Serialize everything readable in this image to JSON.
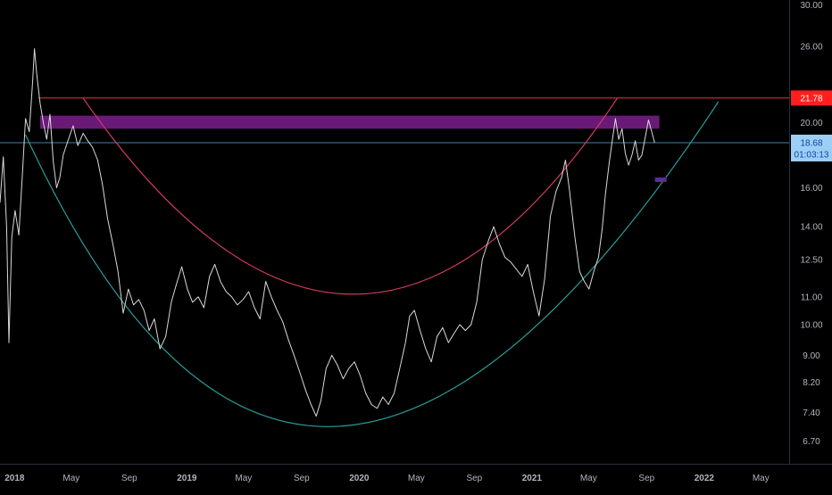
{
  "chart_data": {
    "type": "line",
    "title": "",
    "xlabel": "",
    "ylabel": "",
    "y_scale": "log",
    "ylim": [
      6.2,
      30.5
    ],
    "xlim": [
      "2017-12-01",
      "2022-06-30"
    ],
    "grid": false,
    "y_ticks": [
      "30.00",
      "26.00",
      "20.00",
      "16.00",
      "14.00",
      "12.50",
      "11.00",
      "10.00",
      "9.00",
      "8.20",
      "7.40",
      "6.70"
    ],
    "x_ticks": [
      {
        "label": "2018",
        "date": "2018-01-01"
      },
      {
        "label": "May",
        "date": "2018-05-01"
      },
      {
        "label": "Sep",
        "date": "2018-09-01"
      },
      {
        "label": "2019",
        "date": "2019-01-01"
      },
      {
        "label": "May",
        "date": "2019-05-01"
      },
      {
        "label": "Sep",
        "date": "2019-09-01"
      },
      {
        "label": "2020",
        "date": "2020-01-01"
      },
      {
        "label": "May",
        "date": "2020-05-01"
      },
      {
        "label": "Sep",
        "date": "2020-09-01"
      },
      {
        "label": "2021",
        "date": "2021-01-01"
      },
      {
        "label": "May",
        "date": "2021-05-01"
      },
      {
        "label": "Sep",
        "date": "2021-09-01"
      },
      {
        "label": "2022",
        "date": "2022-01-01"
      },
      {
        "label": "May",
        "date": "2022-05-01"
      }
    ],
    "series": [
      {
        "color": "#d9d9d9",
        "points": [
          [
            "2017-12-01",
            15.2
          ],
          [
            "2017-12-08",
            17.8
          ],
          [
            "2017-12-15",
            14.0
          ],
          [
            "2017-12-20",
            9.4
          ],
          [
            "2017-12-26",
            13.5
          ],
          [
            "2018-01-02",
            14.8
          ],
          [
            "2018-01-10",
            13.6
          ],
          [
            "2018-01-17",
            16.5
          ],
          [
            "2018-01-24",
            20.3
          ],
          [
            "2018-02-01",
            19.4
          ],
          [
            "2018-02-08",
            23.0
          ],
          [
            "2018-02-12",
            25.8
          ],
          [
            "2018-02-17",
            23.6
          ],
          [
            "2018-02-24",
            21.4
          ],
          [
            "2018-03-03",
            20.0
          ],
          [
            "2018-03-10",
            18.9
          ],
          [
            "2018-03-17",
            20.6
          ],
          [
            "2018-03-24",
            17.5
          ],
          [
            "2018-03-31",
            16.0
          ],
          [
            "2018-04-07",
            16.6
          ],
          [
            "2018-04-14",
            17.9
          ],
          [
            "2018-04-24",
            18.8
          ],
          [
            "2018-05-05",
            19.8
          ],
          [
            "2018-05-15",
            18.5
          ],
          [
            "2018-05-26",
            19.3
          ],
          [
            "2018-06-05",
            18.8
          ],
          [
            "2018-06-15",
            18.4
          ],
          [
            "2018-06-26",
            17.6
          ],
          [
            "2018-07-06",
            16.2
          ],
          [
            "2018-07-17",
            14.4
          ],
          [
            "2018-07-28",
            13.2
          ],
          [
            "2018-08-08",
            12.0
          ],
          [
            "2018-08-19",
            10.4
          ],
          [
            "2018-08-30",
            11.3
          ],
          [
            "2018-09-10",
            10.7
          ],
          [
            "2018-09-21",
            10.9
          ],
          [
            "2018-10-02",
            10.5
          ],
          [
            "2018-10-13",
            9.8
          ],
          [
            "2018-10-24",
            10.2
          ],
          [
            "2018-11-05",
            9.2
          ],
          [
            "2018-11-17",
            9.6
          ],
          [
            "2018-11-29",
            10.8
          ],
          [
            "2018-12-10",
            11.5
          ],
          [
            "2018-12-21",
            12.2
          ],
          [
            "2019-01-02",
            11.3
          ],
          [
            "2019-01-13",
            10.8
          ],
          [
            "2019-01-25",
            11.0
          ],
          [
            "2019-02-06",
            10.6
          ],
          [
            "2019-02-18",
            11.8
          ],
          [
            "2019-03-01",
            12.3
          ],
          [
            "2019-03-13",
            11.6
          ],
          [
            "2019-03-25",
            11.2
          ],
          [
            "2019-04-06",
            11.0
          ],
          [
            "2019-04-18",
            10.7
          ],
          [
            "2019-04-30",
            10.9
          ],
          [
            "2019-05-12",
            11.2
          ],
          [
            "2019-05-24",
            10.6
          ],
          [
            "2019-06-05",
            10.2
          ],
          [
            "2019-06-17",
            11.6
          ],
          [
            "2019-06-29",
            11.0
          ],
          [
            "2019-07-11",
            10.5
          ],
          [
            "2019-07-23",
            10.1
          ],
          [
            "2019-08-04",
            9.5
          ],
          [
            "2019-08-16",
            9.0
          ],
          [
            "2019-08-28",
            8.5
          ],
          [
            "2019-09-09",
            8.0
          ],
          [
            "2019-09-21",
            7.6
          ],
          [
            "2019-10-02",
            7.3
          ],
          [
            "2019-10-12",
            7.7
          ],
          [
            "2019-10-23",
            8.6
          ],
          [
            "2019-11-04",
            9.0
          ],
          [
            "2019-11-16",
            8.7
          ],
          [
            "2019-11-28",
            8.3
          ],
          [
            "2019-12-10",
            8.6
          ],
          [
            "2019-12-22",
            8.8
          ],
          [
            "2020-01-03",
            8.4
          ],
          [
            "2020-01-15",
            7.9
          ],
          [
            "2020-01-27",
            7.6
          ],
          [
            "2020-02-08",
            7.5
          ],
          [
            "2020-02-20",
            7.8
          ],
          [
            "2020-03-03",
            7.6
          ],
          [
            "2020-03-15",
            7.9
          ],
          [
            "2020-03-27",
            8.6
          ],
          [
            "2020-04-08",
            9.4
          ],
          [
            "2020-04-17",
            10.3
          ],
          [
            "2020-04-27",
            10.5
          ],
          [
            "2020-05-09",
            9.8
          ],
          [
            "2020-05-21",
            9.2
          ],
          [
            "2020-06-02",
            8.8
          ],
          [
            "2020-06-14",
            9.6
          ],
          [
            "2020-06-26",
            9.9
          ],
          [
            "2020-07-08",
            9.4
          ],
          [
            "2020-07-20",
            9.7
          ],
          [
            "2020-08-01",
            10.0
          ],
          [
            "2020-08-13",
            9.8
          ],
          [
            "2020-08-25",
            10.0
          ],
          [
            "2020-09-06",
            10.8
          ],
          [
            "2020-09-18",
            12.5
          ],
          [
            "2020-09-30",
            13.3
          ],
          [
            "2020-10-12",
            14.0
          ],
          [
            "2020-10-24",
            13.2
          ],
          [
            "2020-11-05",
            12.6
          ],
          [
            "2020-11-17",
            12.4
          ],
          [
            "2020-11-29",
            12.1
          ],
          [
            "2020-12-11",
            11.8
          ],
          [
            "2020-12-23",
            12.3
          ],
          [
            "2021-01-04",
            11.2
          ],
          [
            "2021-01-16",
            10.3
          ],
          [
            "2021-01-28",
            11.7
          ],
          [
            "2021-02-09",
            14.5
          ],
          [
            "2021-02-21",
            15.8
          ],
          [
            "2021-03-05",
            16.6
          ],
          [
            "2021-03-13",
            17.6
          ],
          [
            "2021-03-21",
            16.0
          ],
          [
            "2021-04-02",
            13.5
          ],
          [
            "2021-04-12",
            12.0
          ],
          [
            "2021-04-22",
            11.6
          ],
          [
            "2021-05-02",
            11.3
          ],
          [
            "2021-05-12",
            12.0
          ],
          [
            "2021-05-22",
            12.6
          ],
          [
            "2021-05-30",
            13.9
          ],
          [
            "2021-06-06",
            15.7
          ],
          [
            "2021-06-14",
            17.5
          ],
          [
            "2021-06-21",
            19.0
          ],
          [
            "2021-06-27",
            20.3
          ],
          [
            "2021-07-04",
            18.9
          ],
          [
            "2021-07-11",
            19.6
          ],
          [
            "2021-07-18",
            18.0
          ],
          [
            "2021-07-25",
            17.3
          ],
          [
            "2021-08-01",
            17.9
          ],
          [
            "2021-08-08",
            18.8
          ],
          [
            "2021-08-15",
            17.6
          ],
          [
            "2021-08-22",
            17.9
          ],
          [
            "2021-08-29",
            19.0
          ],
          [
            "2021-09-05",
            20.2
          ],
          [
            "2021-09-12",
            19.4
          ],
          [
            "2021-09-18",
            18.68
          ]
        ]
      }
    ],
    "resistance_zone": {
      "y_low": 19.6,
      "y_high": 20.5,
      "x_start": "2018-02-24",
      "x_end": "2021-09-28",
      "color": "#7b1f8c"
    },
    "resistance_line": {
      "y": 21.78,
      "x_start": "2018-02-20",
      "color": "#e53935"
    },
    "current_price_line": {
      "y": 18.68,
      "color": "#3d85a8"
    },
    "small_marker": {
      "date": "2021-09-30",
      "y": 16.45,
      "color": "#5b2e91"
    },
    "cup_curves": [
      {
        "name": "",
        "color": "#d23a5e",
        "points": [
          [
            "2018-05-26",
            21.78
          ],
          [
            "2019-12-20",
            11.1
          ],
          [
            "2021-07-01",
            21.78
          ]
        ]
      },
      {
        "name": "",
        "color": "#2a9d9a",
        "points": [
          [
            "2018-01-24",
            19.2
          ],
          [
            "2019-11-15",
            7.05
          ],
          [
            "2022-01-31",
            21.5
          ]
        ]
      }
    ]
  },
  "price_axis": {
    "resistance_label": "21.78",
    "resistance_label_color": "#ff1f1f",
    "current_price_label": "18.68",
    "countdown_label": "01:03:13",
    "current_label_bg": "#9dcef5",
    "current_label_text_color": "#0d47a1"
  },
  "colors": {
    "background": "#000000",
    "axis_text": "#b2b5be",
    "axis_line": "#2a2e39"
  }
}
